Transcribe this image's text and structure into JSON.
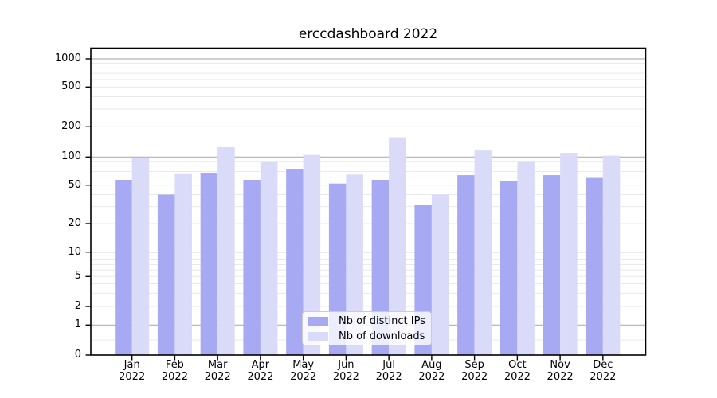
{
  "title": "erccdashboard 2022",
  "colors": {
    "ips_bar": "#a7a9f2",
    "downloads_bar": "#d9dbf9",
    "major_gridline": "#b0b0b0",
    "minor_gridline": "#e9e9ec",
    "spine": "#000000",
    "background": "#ffffff"
  },
  "legend": {
    "items": [
      {
        "label": "Nb of distinct IPs",
        "series": "ips"
      },
      {
        "label": "Nb of downloads",
        "series": "downloads"
      }
    ]
  },
  "chart_data": {
    "type": "bar",
    "title": "erccdashboard 2022",
    "categories": [
      "Jan 2022",
      "Feb 2022",
      "Mar 2022",
      "Apr 2022",
      "May 2022",
      "Jun 2022",
      "Jul 2022",
      "Aug 2022",
      "Sep 2022",
      "Oct 2022",
      "Nov 2022",
      "Dec 2022"
    ],
    "series": [
      {
        "name": "Nb of distinct IPs",
        "values": [
          57,
          40,
          68,
          57,
          75,
          52,
          57,
          31,
          64,
          55,
          64,
          61
        ]
      },
      {
        "name": "Nb of downloads",
        "values": [
          97,
          67,
          125,
          88,
          105,
          65,
          157,
          40,
          116,
          90,
          110,
          103
        ]
      }
    ],
    "xlabel": "",
    "ylabel": "",
    "yscale": "symlog",
    "yticks": [
      0,
      1,
      2,
      5,
      10,
      20,
      50,
      100,
      200,
      500,
      1000
    ],
    "ylim": [
      0,
      1300
    ],
    "grid": "horizontal, major and minor",
    "legend_position": "lower center"
  }
}
